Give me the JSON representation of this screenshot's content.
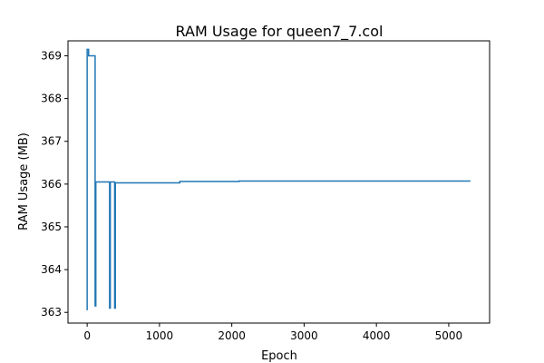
{
  "chart_data": {
    "type": "line",
    "title": "RAM Usage for queen7_7.col",
    "xlabel": "Epoch",
    "ylabel": "RAM Usage (MB)",
    "xlim": [
      -265,
      5565
    ],
    "ylim": [
      362.75,
      369.35
    ],
    "xticks": [
      0,
      1000,
      2000,
      3000,
      4000,
      5000
    ],
    "yticks": [
      363,
      364,
      365,
      366,
      367,
      368,
      369
    ],
    "grid": false,
    "series": [
      {
        "color": "#1f77b4",
        "x": [
          0,
          0,
          20,
          20,
          110,
          110,
          120,
          120,
          310,
          310,
          320,
          320,
          380,
          380,
          390,
          390,
          1280,
          1280,
          2100,
          2100,
          5300
        ],
        "y": [
          363.05,
          369.15,
          369.15,
          369.0,
          369.0,
          363.15,
          363.15,
          366.05,
          366.05,
          363.1,
          363.1,
          366.05,
          366.05,
          363.1,
          363.1,
          366.03,
          366.03,
          366.06,
          366.06,
          366.07,
          366.07
        ]
      }
    ]
  }
}
